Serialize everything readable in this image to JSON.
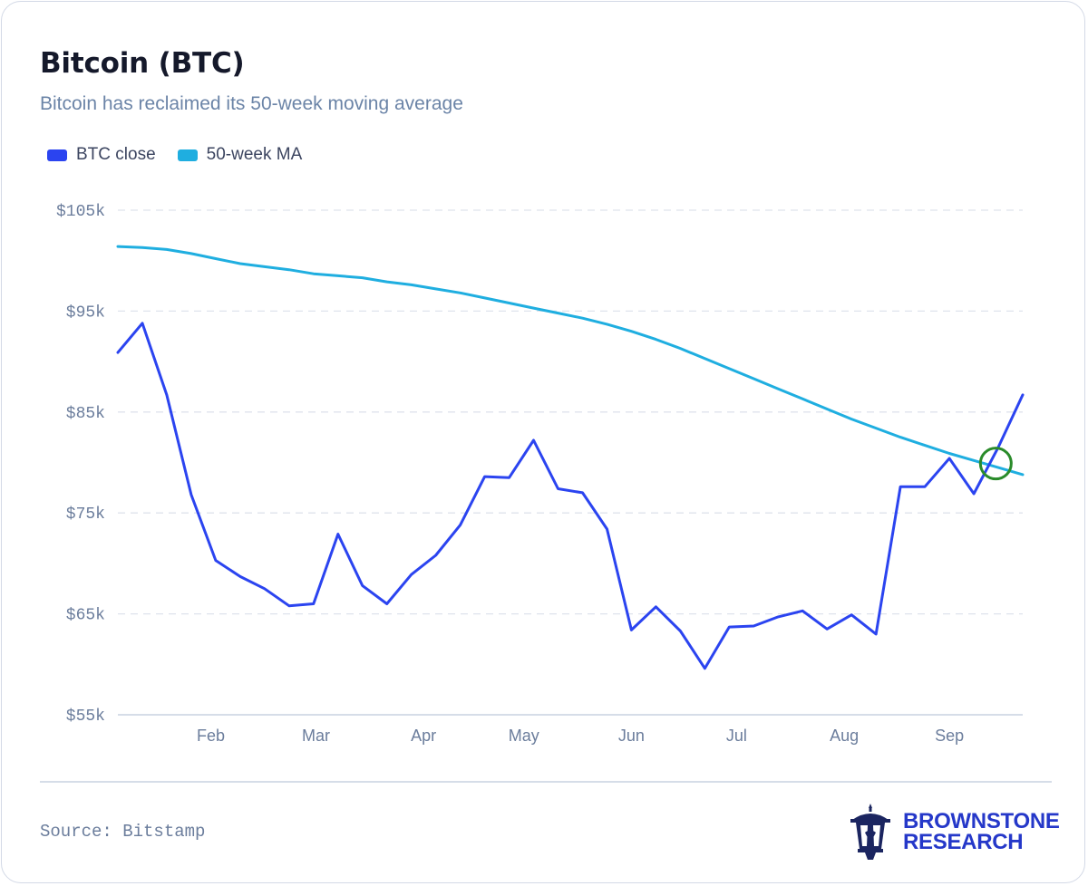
{
  "header": {
    "title": "Bitcoin (BTC)",
    "subtitle": "Bitcoin has reclaimed its 50-week moving average"
  },
  "legend": [
    {
      "label": "BTC close",
      "color": "#2b44f0"
    },
    {
      "label": "50-week MA",
      "color": "#1faee0"
    }
  ],
  "chart_data": {
    "type": "line",
    "title": "Bitcoin (BTC)",
    "xlabel": "",
    "ylabel": "",
    "ylim": [
      55000,
      105000
    ],
    "yticks": [
      55000,
      65000,
      75000,
      85000,
      95000,
      105000
    ],
    "ytick_labels": [
      "$55k",
      "$65k",
      "$75k",
      "$85k",
      "$95k",
      "$105k"
    ],
    "x_month_labels": [
      "Feb",
      "Mar",
      "Apr",
      "May",
      "Jun",
      "Jul",
      "Aug",
      "Sep"
    ],
    "x_month_label_at_week": [
      3.8,
      8.1,
      12.5,
      16.6,
      21,
      25.3,
      29.7,
      34
    ],
    "x_weeks": [
      0,
      1,
      2,
      3,
      4,
      5,
      6,
      7,
      8,
      9,
      10,
      11,
      12,
      13,
      14,
      15,
      16,
      17,
      18,
      19,
      20,
      21,
      22,
      23,
      24,
      25,
      26,
      27,
      28,
      29,
      30,
      31,
      32,
      33,
      34,
      35,
      36,
      37
    ],
    "xlim": [
      0,
      37
    ],
    "grid": true,
    "legend_position": "top-left",
    "series": [
      {
        "name": "BTC close",
        "color": "#2b44f0",
        "values": [
          90900,
          93800,
          86700,
          76800,
          70300,
          68700,
          67500,
          65800,
          66000,
          72900,
          67800,
          66000,
          68900,
          70800,
          73800,
          78600,
          78500,
          82200,
          77400,
          77000,
          73400,
          63400,
          65700,
          63300,
          59600,
          63700,
          63800,
          64700,
          65300,
          63500,
          64900,
          63000,
          77600,
          77600,
          80400,
          76900,
          81500,
          86700
        ]
      },
      {
        "name": "50-week MA",
        "color": "#1faee0",
        "values": [
          101400,
          101300,
          101100,
          100700,
          100200,
          99700,
          99400,
          99100,
          98700,
          98500,
          98300,
          97900,
          97600,
          97200,
          96800,
          96300,
          95800,
          95300,
          94800,
          94300,
          93700,
          93000,
          92200,
          91300,
          90300,
          89300,
          88300,
          87300,
          86300,
          85300,
          84300,
          83400,
          82500,
          81700,
          80900,
          80200,
          79500,
          78800
        ]
      }
    ],
    "annotation": {
      "type": "circle",
      "x_week": 35.9,
      "y": 79900,
      "color": "#2a8b2a",
      "meaning": "crossover"
    }
  },
  "footer": {
    "source": "Source: Bitstamp",
    "brand_line1": "BROWNSTONE",
    "brand_line2": "RESEARCH"
  }
}
